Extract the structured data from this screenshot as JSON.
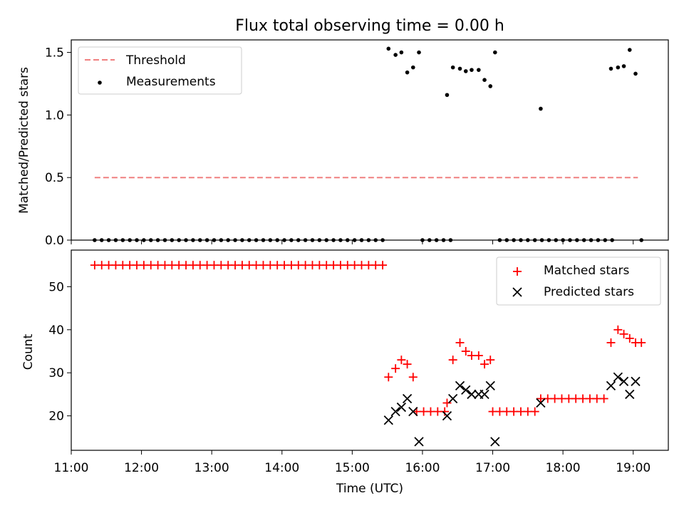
{
  "chart_data": [
    {
      "type": "scatter",
      "title": "Flux total observing time = 0.00 h",
      "ylabel": "Matched/Predicted stars",
      "xlim": [
        "11:00",
        "19:30"
      ],
      "ylim": [
        0,
        1.6
      ],
      "yticks": [
        0.0,
        0.5,
        1.0,
        1.5
      ],
      "ytick_labels": [
        "0.0",
        "0.5",
        "1.0",
        "1.5"
      ],
      "legend_position": "top-left",
      "threshold": {
        "name": "Threshold",
        "value": 0.5,
        "x_range": [
          "11:20",
          "19:04"
        ],
        "color": "#f08080"
      },
      "series": [
        {
          "name": "Measurements",
          "color": "#000000",
          "marker": "dot",
          "points": [
            [
              "11:20",
              0
            ],
            [
              "11:26",
              0
            ],
            [
              "11:32",
              0
            ],
            [
              "11:38",
              0
            ],
            [
              "11:44",
              0
            ],
            [
              "11:50",
              0
            ],
            [
              "11:56",
              0
            ],
            [
              "12:02",
              0
            ],
            [
              "12:08",
              0
            ],
            [
              "12:14",
              0
            ],
            [
              "12:20",
              0
            ],
            [
              "12:26",
              0
            ],
            [
              "12:32",
              0
            ],
            [
              "12:38",
              0
            ],
            [
              "12:44",
              0
            ],
            [
              "12:50",
              0
            ],
            [
              "12:56",
              0
            ],
            [
              "13:02",
              0
            ],
            [
              "13:08",
              0
            ],
            [
              "13:14",
              0
            ],
            [
              "13:20",
              0
            ],
            [
              "13:26",
              0
            ],
            [
              "13:32",
              0
            ],
            [
              "13:38",
              0
            ],
            [
              "13:44",
              0
            ],
            [
              "13:50",
              0
            ],
            [
              "13:56",
              0
            ],
            [
              "14:02",
              0
            ],
            [
              "14:08",
              0
            ],
            [
              "14:14",
              0
            ],
            [
              "14:20",
              0
            ],
            [
              "14:26",
              0
            ],
            [
              "14:32",
              0
            ],
            [
              "14:38",
              0
            ],
            [
              "14:44",
              0
            ],
            [
              "14:50",
              0
            ],
            [
              "14:56",
              0
            ],
            [
              "15:02",
              0
            ],
            [
              "15:08",
              0
            ],
            [
              "15:14",
              0
            ],
            [
              "15:20",
              0
            ],
            [
              "15:26",
              0
            ],
            [
              "15:31",
              1.53
            ],
            [
              "15:37",
              1.48
            ],
            [
              "15:42",
              1.5
            ],
            [
              "15:47",
              1.34
            ],
            [
              "15:52",
              1.38
            ],
            [
              "15:57",
              1.5
            ],
            [
              "16:00",
              0
            ],
            [
              "16:06",
              0
            ],
            [
              "16:12",
              0
            ],
            [
              "16:18",
              0
            ],
            [
              "16:24",
              0
            ],
            [
              "16:21",
              1.16
            ],
            [
              "16:26",
              1.38
            ],
            [
              "16:32",
              1.37
            ],
            [
              "16:37",
              1.35
            ],
            [
              "16:42",
              1.36
            ],
            [
              "16:48",
              1.36
            ],
            [
              "16:53",
              1.28
            ],
            [
              "16:58",
              1.23
            ],
            [
              "17:02",
              1.5
            ],
            [
              "17:06",
              0
            ],
            [
              "17:12",
              0
            ],
            [
              "17:18",
              0
            ],
            [
              "17:24",
              0
            ],
            [
              "17:30",
              0
            ],
            [
              "17:36",
              0
            ],
            [
              "17:42",
              0
            ],
            [
              "17:48",
              0
            ],
            [
              "17:41",
              1.05
            ],
            [
              "17:54",
              0
            ],
            [
              "18:00",
              0
            ],
            [
              "18:06",
              0
            ],
            [
              "18:12",
              0
            ],
            [
              "18:18",
              0
            ],
            [
              "18:24",
              0
            ],
            [
              "18:30",
              0
            ],
            [
              "18:36",
              0
            ],
            [
              "18:42",
              0
            ],
            [
              "18:41",
              1.37
            ],
            [
              "18:47",
              1.38
            ],
            [
              "18:52",
              1.39
            ],
            [
              "18:57",
              1.52
            ],
            [
              "19:02",
              1.33
            ],
            [
              "19:07",
              0
            ]
          ]
        }
      ]
    },
    {
      "type": "scatter",
      "xlabel": "Time (UTC)",
      "ylabel": "Count",
      "xlim": [
        "11:00",
        "19:30"
      ],
      "ylim": [
        12,
        58.5
      ],
      "xtick_labels": [
        "11:00",
        "12:00",
        "13:00",
        "14:00",
        "15:00",
        "16:00",
        "17:00",
        "18:00",
        "19:00"
      ],
      "yticks": [
        20,
        30,
        40,
        50
      ],
      "ytick_labels": [
        "20",
        "30",
        "40",
        "50"
      ],
      "legend_position": "top-right",
      "series": [
        {
          "name": "Matched stars",
          "color": "#ff0000",
          "marker": "plus",
          "points": [
            [
              "11:20",
              55
            ],
            [
              "11:26",
              55
            ],
            [
              "11:32",
              55
            ],
            [
              "11:38",
              55
            ],
            [
              "11:44",
              55
            ],
            [
              "11:50",
              55
            ],
            [
              "11:56",
              55
            ],
            [
              "12:02",
              55
            ],
            [
              "12:08",
              55
            ],
            [
              "12:14",
              55
            ],
            [
              "12:20",
              55
            ],
            [
              "12:26",
              55
            ],
            [
              "12:32",
              55
            ],
            [
              "12:38",
              55
            ],
            [
              "12:44",
              55
            ],
            [
              "12:50",
              55
            ],
            [
              "12:56",
              55
            ],
            [
              "13:02",
              55
            ],
            [
              "13:08",
              55
            ],
            [
              "13:14",
              55
            ],
            [
              "13:20",
              55
            ],
            [
              "13:26",
              55
            ],
            [
              "13:32",
              55
            ],
            [
              "13:38",
              55
            ],
            [
              "13:44",
              55
            ],
            [
              "13:50",
              55
            ],
            [
              "13:56",
              55
            ],
            [
              "14:02",
              55
            ],
            [
              "14:08",
              55
            ],
            [
              "14:14",
              55
            ],
            [
              "14:20",
              55
            ],
            [
              "14:26",
              55
            ],
            [
              "14:32",
              55
            ],
            [
              "14:38",
              55
            ],
            [
              "14:44",
              55
            ],
            [
              "14:50",
              55
            ],
            [
              "14:56",
              55
            ],
            [
              "15:02",
              55
            ],
            [
              "15:08",
              55
            ],
            [
              "15:14",
              55
            ],
            [
              "15:20",
              55
            ],
            [
              "15:26",
              55
            ],
            [
              "15:31",
              29
            ],
            [
              "15:37",
              31
            ],
            [
              "15:42",
              33
            ],
            [
              "15:47",
              32
            ],
            [
              "15:52",
              29
            ],
            [
              "15:55",
              21
            ],
            [
              "16:01",
              21
            ],
            [
              "16:07",
              21
            ],
            [
              "16:13",
              21
            ],
            [
              "16:19",
              21
            ],
            [
              "16:21",
              23
            ],
            [
              "16:26",
              33
            ],
            [
              "16:32",
              37
            ],
            [
              "16:37",
              35
            ],
            [
              "16:42",
              34
            ],
            [
              "16:48",
              34
            ],
            [
              "16:53",
              32
            ],
            [
              "16:58",
              33
            ],
            [
              "17:00",
              21
            ],
            [
              "17:06",
              21
            ],
            [
              "17:12",
              21
            ],
            [
              "17:18",
              21
            ],
            [
              "17:24",
              21
            ],
            [
              "17:30",
              21
            ],
            [
              "17:36",
              21
            ],
            [
              "17:41",
              24
            ],
            [
              "17:47",
              24
            ],
            [
              "17:53",
              24
            ],
            [
              "17:59",
              24
            ],
            [
              "18:05",
              24
            ],
            [
              "18:11",
              24
            ],
            [
              "18:17",
              24
            ],
            [
              "18:23",
              24
            ],
            [
              "18:29",
              24
            ],
            [
              "18:35",
              24
            ],
            [
              "18:41",
              37
            ],
            [
              "18:47",
              40
            ],
            [
              "18:52",
              39
            ],
            [
              "18:57",
              38
            ],
            [
              "19:02",
              37
            ],
            [
              "19:07",
              37
            ]
          ]
        },
        {
          "name": "Predicted stars",
          "color": "#000000",
          "marker": "cross",
          "points": [
            [
              "15:31",
              19
            ],
            [
              "15:37",
              21
            ],
            [
              "15:42",
              22
            ],
            [
              "15:47",
              24
            ],
            [
              "15:52",
              21
            ],
            [
              "15:57",
              14
            ],
            [
              "16:21",
              20
            ],
            [
              "16:26",
              24
            ],
            [
              "16:32",
              27
            ],
            [
              "16:37",
              26
            ],
            [
              "16:42",
              25
            ],
            [
              "16:48",
              25
            ],
            [
              "16:53",
              25
            ],
            [
              "16:58",
              27
            ],
            [
              "17:02",
              14
            ],
            [
              "17:41",
              23
            ],
            [
              "18:41",
              27
            ],
            [
              "18:47",
              29
            ],
            [
              "18:52",
              28
            ],
            [
              "18:57",
              25
            ],
            [
              "19:02",
              28
            ]
          ]
        }
      ]
    }
  ]
}
